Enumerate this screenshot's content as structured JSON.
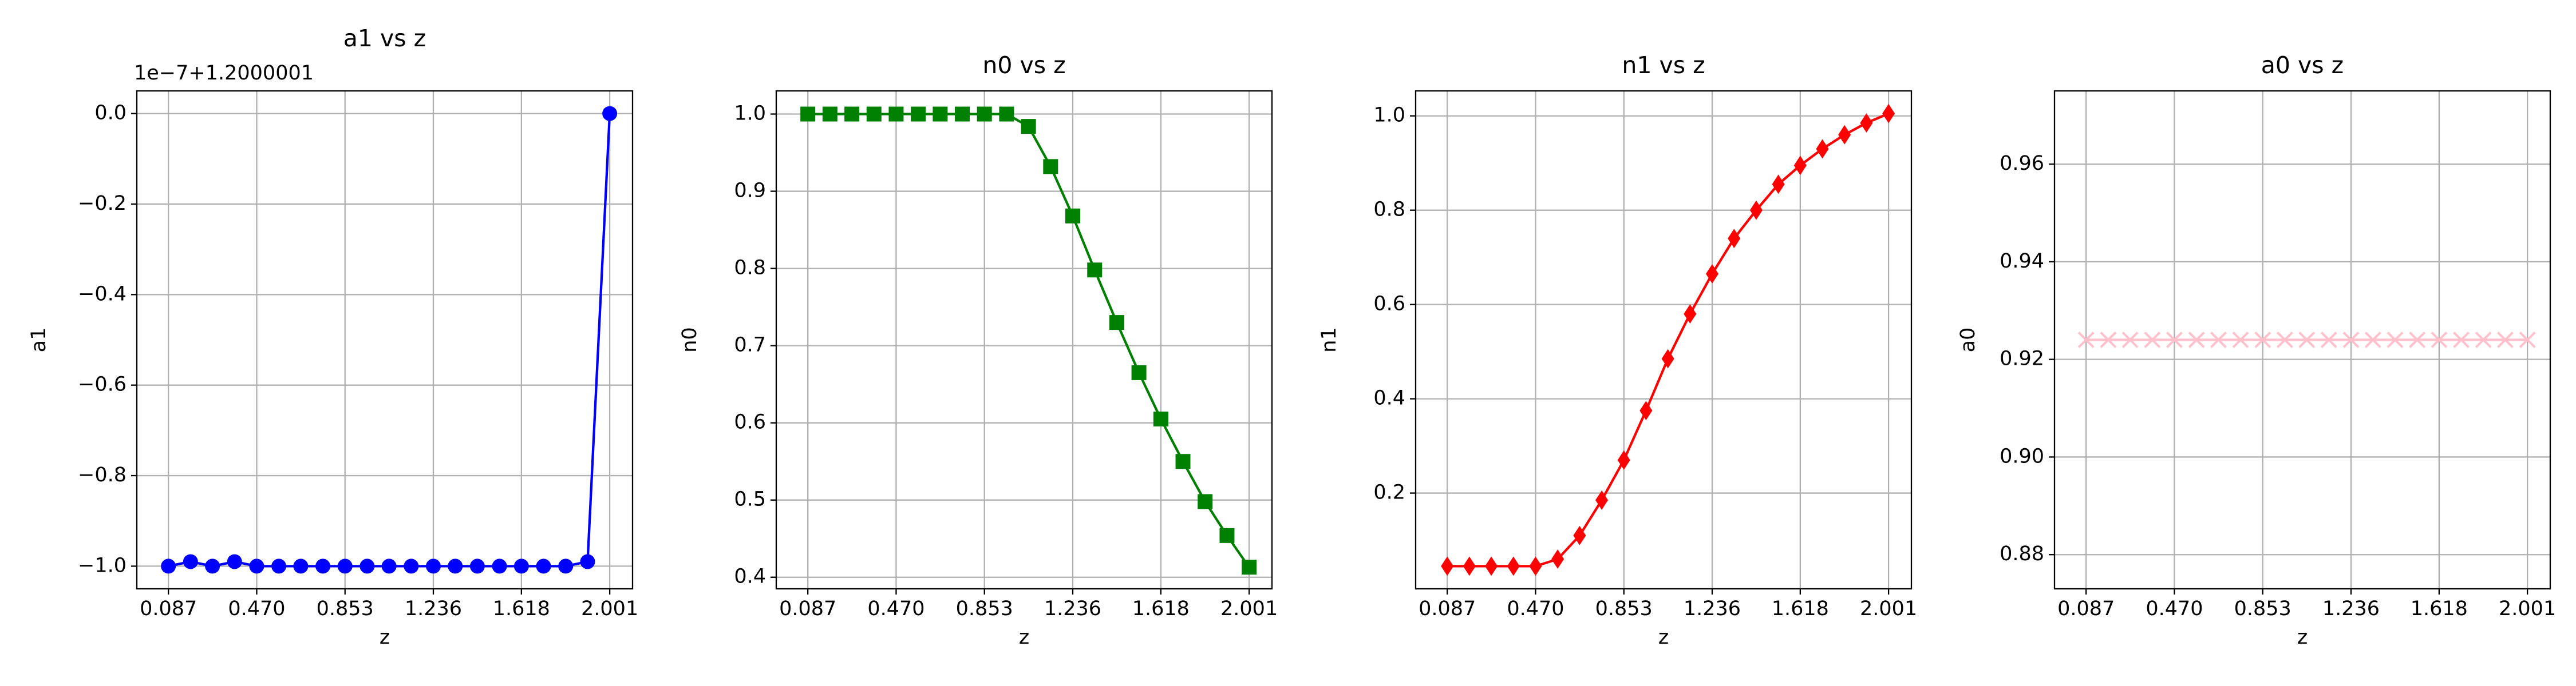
{
  "chart_data": [
    {
      "type": "line",
      "title": "a1 vs z",
      "xlabel": "z",
      "ylabel": "a1",
      "offset_text": "1e−7+1.2000001",
      "x": [
        0.087,
        0.183,
        0.278,
        0.374,
        0.47,
        0.566,
        0.661,
        0.757,
        0.853,
        0.949,
        1.044,
        1.14,
        1.236,
        1.331,
        1.427,
        1.523,
        1.618,
        1.714,
        1.81,
        1.905,
        2.001
      ],
      "series": [
        {
          "name": "a1",
          "color": "#0000ff",
          "marker": "circle",
          "values": [
            -1.0,
            -0.99,
            -1.0,
            -0.99,
            -1.0,
            -1.0,
            -1.0,
            -1.0,
            -1.0,
            -1.0,
            -1.0,
            -1.0,
            -1.0,
            -1.0,
            -1.0,
            -1.0,
            -1.0,
            -1.0,
            -1.0,
            -0.99,
            0.0
          ]
        }
      ],
      "xlim": [
        -0.05,
        2.1
      ],
      "ylim": [
        -1.05,
        0.05
      ],
      "grid": true,
      "xticks": [
        {
          "value": 0.087,
          "label": "0.087"
        },
        {
          "value": 0.47,
          "label": "0.470"
        },
        {
          "value": 0.853,
          "label": "0.853"
        },
        {
          "value": 1.236,
          "label": "1.236"
        },
        {
          "value": 1.618,
          "label": "1.618"
        },
        {
          "value": 2.001,
          "label": "2.001"
        }
      ],
      "yticks": [
        {
          "value": -1.0,
          "label": "−1.0"
        },
        {
          "value": -0.8,
          "label": "−0.8"
        },
        {
          "value": -0.6,
          "label": "−0.6"
        },
        {
          "value": -0.4,
          "label": "−0.4"
        },
        {
          "value": -0.2,
          "label": "−0.2"
        },
        {
          "value": 0.0,
          "label": "0.0"
        }
      ]
    },
    {
      "type": "line",
      "title": "n0 vs z",
      "xlabel": "z",
      "ylabel": "n0",
      "x": [
        0.087,
        0.183,
        0.278,
        0.374,
        0.47,
        0.566,
        0.661,
        0.757,
        0.853,
        0.949,
        1.044,
        1.14,
        1.236,
        1.331,
        1.427,
        1.523,
        1.618,
        1.714,
        1.81,
        1.905,
        2.001
      ],
      "series": [
        {
          "name": "n0",
          "color": "#008000",
          "marker": "square",
          "values": [
            1.0,
            1.0,
            1.0,
            1.0,
            1.0,
            1.0,
            1.0,
            1.0,
            1.0,
            1.0,
            0.984,
            0.932,
            0.868,
            0.798,
            0.73,
            0.665,
            0.605,
            0.55,
            0.498,
            0.454,
            0.413
          ]
        }
      ],
      "xlim": [
        -0.05,
        2.1
      ],
      "ylim": [
        0.385,
        1.03
      ],
      "grid": true,
      "xticks": [
        {
          "value": 0.087,
          "label": "0.087"
        },
        {
          "value": 0.47,
          "label": "0.470"
        },
        {
          "value": 0.853,
          "label": "0.853"
        },
        {
          "value": 1.236,
          "label": "1.236"
        },
        {
          "value": 1.618,
          "label": "1.618"
        },
        {
          "value": 2.001,
          "label": "2.001"
        }
      ],
      "yticks": [
        {
          "value": 0.4,
          "label": "0.4"
        },
        {
          "value": 0.5,
          "label": "0.5"
        },
        {
          "value": 0.6,
          "label": "0.6"
        },
        {
          "value": 0.7,
          "label": "0.7"
        },
        {
          "value": 0.8,
          "label": "0.8"
        },
        {
          "value": 0.9,
          "label": "0.9"
        },
        {
          "value": 1.0,
          "label": "1.0"
        }
      ]
    },
    {
      "type": "line",
      "title": "n1 vs z",
      "xlabel": "z",
      "ylabel": "n1",
      "x": [
        0.087,
        0.183,
        0.278,
        0.374,
        0.47,
        0.566,
        0.661,
        0.757,
        0.853,
        0.949,
        1.044,
        1.14,
        1.236,
        1.331,
        1.427,
        1.523,
        1.618,
        1.714,
        1.81,
        1.905,
        2.001
      ],
      "series": [
        {
          "name": "n1",
          "color": "#ff0000",
          "marker": "diamond",
          "values": [
            0.045,
            0.045,
            0.045,
            0.045,
            0.045,
            0.06,
            0.11,
            0.185,
            0.27,
            0.375,
            0.485,
            0.58,
            0.665,
            0.74,
            0.8,
            0.855,
            0.895,
            0.93,
            0.96,
            0.985,
            1.005
          ]
        }
      ],
      "xlim": [
        -0.05,
        2.1
      ],
      "ylim": [
        -0.003,
        1.053
      ],
      "grid": true,
      "xticks": [
        {
          "value": 0.087,
          "label": "0.087"
        },
        {
          "value": 0.47,
          "label": "0.470"
        },
        {
          "value": 0.853,
          "label": "0.853"
        },
        {
          "value": 1.236,
          "label": "1.236"
        },
        {
          "value": 1.618,
          "label": "1.618"
        },
        {
          "value": 2.001,
          "label": "2.001"
        }
      ],
      "yticks": [
        {
          "value": 0.2,
          "label": "0.2"
        },
        {
          "value": 0.4,
          "label": "0.4"
        },
        {
          "value": 0.6,
          "label": "0.6"
        },
        {
          "value": 0.8,
          "label": "0.8"
        },
        {
          "value": 1.0,
          "label": "1.0"
        }
      ]
    },
    {
      "type": "line",
      "title": "a0 vs z",
      "xlabel": "z",
      "ylabel": "a0",
      "x": [
        0.087,
        0.183,
        0.278,
        0.374,
        0.47,
        0.566,
        0.661,
        0.757,
        0.853,
        0.949,
        1.044,
        1.14,
        1.236,
        1.331,
        1.427,
        1.523,
        1.618,
        1.714,
        1.81,
        1.905,
        2.001
      ],
      "series": [
        {
          "name": "a0",
          "color": "#ffc0cb",
          "marker": "x",
          "values": [
            0.924,
            0.924,
            0.924,
            0.924,
            0.924,
            0.924,
            0.924,
            0.924,
            0.924,
            0.924,
            0.924,
            0.924,
            0.924,
            0.924,
            0.924,
            0.924,
            0.924,
            0.924,
            0.924,
            0.924,
            0.924
          ]
        }
      ],
      "xlim": [
        -0.05,
        2.1
      ],
      "ylim": [
        0.873,
        0.975
      ],
      "grid": true,
      "xticks": [
        {
          "value": 0.087,
          "label": "0.087"
        },
        {
          "value": 0.47,
          "label": "0.470"
        },
        {
          "value": 0.853,
          "label": "0.853"
        },
        {
          "value": 1.236,
          "label": "1.236"
        },
        {
          "value": 1.618,
          "label": "1.618"
        },
        {
          "value": 2.001,
          "label": "2.001"
        }
      ],
      "yticks": [
        {
          "value": 0.88,
          "label": "0.88"
        },
        {
          "value": 0.9,
          "label": "0.90"
        },
        {
          "value": 0.92,
          "label": "0.92"
        },
        {
          "value": 0.94,
          "label": "0.94"
        },
        {
          "value": 0.96,
          "label": "0.96"
        }
      ]
    }
  ]
}
